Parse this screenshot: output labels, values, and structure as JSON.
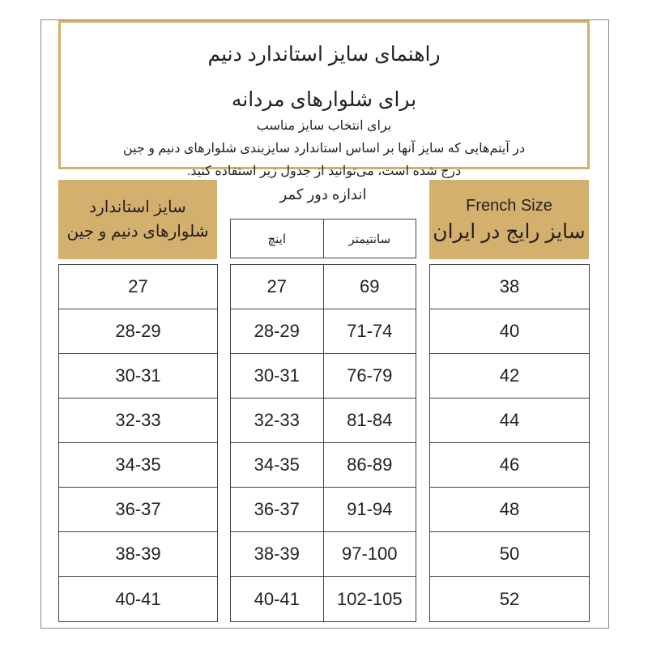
{
  "intro": {
    "title1": "راهنمای سایز استاندارد دنیم",
    "title2": "برای شلوارهای مردانه",
    "line1": "برای انتخاب سایز مناسب",
    "line2": "در آیتم‌هایی که سایز آنها بر اساس استاندارد سایزبندی شلوارهای دنیم و جین",
    "line3": "درج شده است، می‌توانید از جدول زیر استفاده کنید."
  },
  "headers": {
    "standard": [
      "سایز استاندارد",
      "شلوارهای دنیم و جین"
    ],
    "waist": "اندازه دور کمر",
    "inch": "اینچ",
    "cm": "سانتیمتر",
    "french_en": "French Size",
    "french_fa": "سایز رایج در ایران"
  },
  "colors": {
    "accent": "#d4b06e"
  },
  "rows": [
    {
      "standard": "27",
      "inch": "27",
      "cm": "69",
      "french": "38"
    },
    {
      "standard": "28-29",
      "inch": "28-29",
      "cm": "71-74",
      "french": "40"
    },
    {
      "standard": "30-31",
      "inch": "30-31",
      "cm": "76-79",
      "french": "42"
    },
    {
      "standard": "32-33",
      "inch": "32-33",
      "cm": "81-84",
      "french": "44"
    },
    {
      "standard": "34-35",
      "inch": "34-35",
      "cm": "86-89",
      "french": "46"
    },
    {
      "standard": "36-37",
      "inch": "36-37",
      "cm": "91-94",
      "french": "48"
    },
    {
      "standard": "38-39",
      "inch": "38-39",
      "cm": "97-100",
      "french": "50"
    },
    {
      "standard": "40-41",
      "inch": "40-41",
      "cm": "102-105",
      "french": "52"
    }
  ]
}
